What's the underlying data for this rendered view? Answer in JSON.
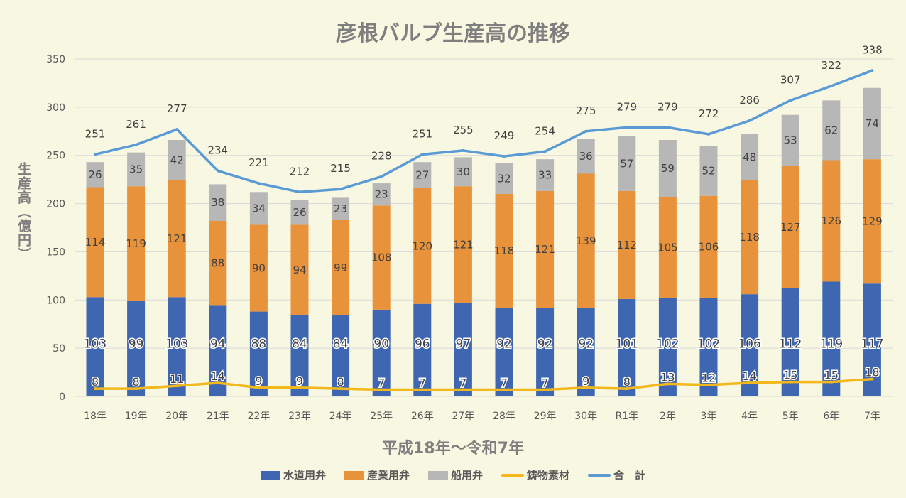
{
  "chart_data": {
    "type": "bar",
    "title": "彦根バルブ生産高の推移",
    "xlabel": "平成18年～令和7年",
    "ylabel": "生産高（億円）",
    "ylim": [
      0,
      350
    ],
    "yticks": [
      0,
      50,
      100,
      150,
      200,
      250,
      300,
      350
    ],
    "grid": true,
    "legend_position": "bottom",
    "categories": [
      "18年",
      "19年",
      "20年",
      "21年",
      "22年",
      "23年",
      "24年",
      "25年",
      "26年",
      "27年",
      "28年",
      "29年",
      "30年",
      "R1年",
      "2年",
      "3年",
      "4年",
      "5年",
      "6年",
      "7年"
    ],
    "series": [
      {
        "name": "水道用弁",
        "kind": "bar",
        "color": "#3f67b1",
        "values": [
          103,
          99,
          103,
          94,
          88,
          84,
          84,
          90,
          96,
          97,
          92,
          92,
          92,
          101,
          102,
          102,
          106,
          112,
          119,
          117
        ]
      },
      {
        "name": "産業用弁",
        "kind": "bar",
        "color": "#e8923b",
        "values": [
          114,
          119,
          121,
          88,
          90,
          94,
          99,
          108,
          120,
          121,
          118,
          121,
          139,
          112,
          105,
          106,
          118,
          127,
          126,
          129
        ]
      },
      {
        "name": "船用弁",
        "kind": "bar",
        "color": "#b7b7b7",
        "values": [
          26,
          35,
          42,
          38,
          34,
          26,
          23,
          23,
          27,
          30,
          32,
          33,
          36,
          57,
          59,
          52,
          48,
          53,
          62,
          74
        ]
      },
      {
        "name": "鋳物素材",
        "kind": "line",
        "color": "#f2b81c",
        "values": [
          8,
          8,
          11,
          14,
          9,
          9,
          8,
          7,
          7,
          7,
          7,
          7,
          9,
          8,
          13,
          12,
          14,
          15,
          15,
          18
        ]
      },
      {
        "name": "合　計",
        "kind": "line",
        "color": "#5b9bd5",
        "values": [
          251,
          261,
          277,
          234,
          221,
          212,
          215,
          228,
          251,
          255,
          249,
          254,
          275,
          279,
          279,
          272,
          286,
          307,
          322,
          338
        ]
      }
    ]
  }
}
